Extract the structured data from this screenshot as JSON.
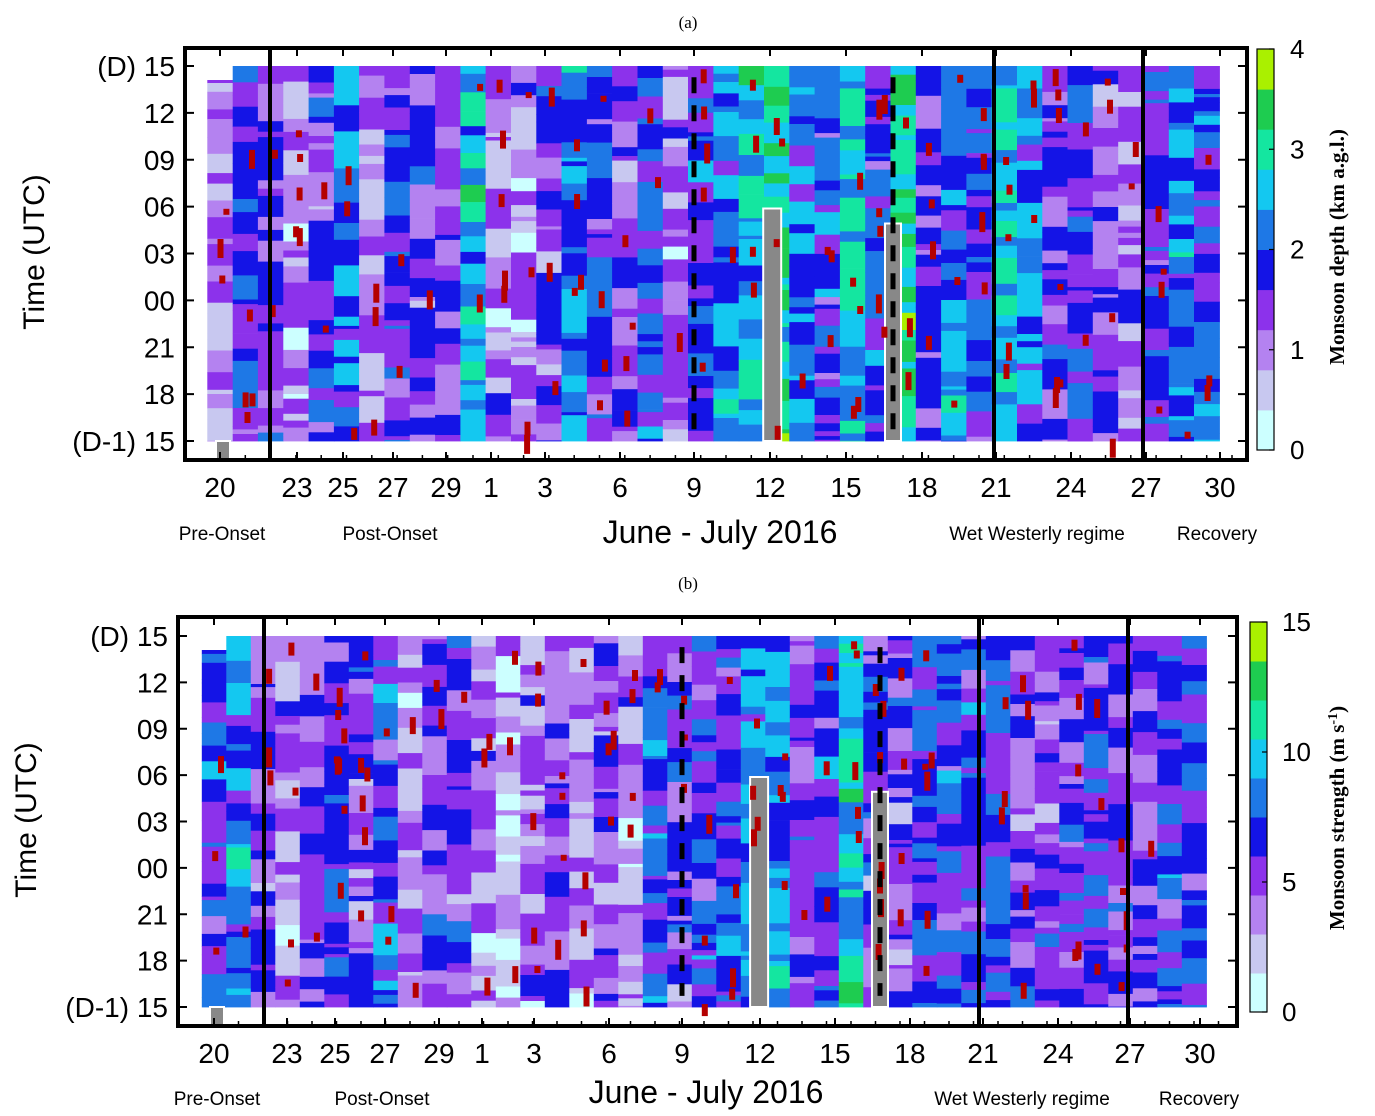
{
  "figure": {
    "date_range_label": "June - July 2016",
    "date_ticks": [
      "20",
      "23",
      "25",
      "27",
      "29",
      "1",
      "3",
      "6",
      "9",
      "12",
      "15",
      "18",
      "21",
      "24",
      "27",
      "30"
    ],
    "time_ticks": [
      "(D-1) 15",
      "18",
      "21",
      "00",
      "03",
      "06",
      "09",
      "12",
      "(D) 15"
    ],
    "ylabel": "Time (UTC)",
    "regimes": [
      "Pre-Onset",
      "Post-Onset",
      "Wet Westerly regime",
      "Recovery"
    ]
  },
  "chart_data": [
    {
      "type": "heatmap",
      "panel_label": "(a)",
      "title": "",
      "xlabel": "June - July 2016",
      "ylabel": "Time (UTC)",
      "colorbar": {
        "label": "Monsoon depth (km a.g.l.)",
        "ticks": [
          "0",
          "1",
          "2",
          "3",
          "4"
        ],
        "min": 0,
        "max": 4,
        "colors": [
          "#ccffff",
          "#c8c8f0",
          "#b482f0",
          "#8c32eb",
          "#1414e6",
          "#1e78e6",
          "#14c8f0",
          "#14e6a0",
          "#1ecc50",
          "#aaf000"
        ]
      },
      "x": "daily columns, 20 June to 30 July 2016",
      "y": "3-hourly time of day, 15 UTC (D-1) to 15 UTC (D)",
      "regime_boundaries": [
        "22 June",
        "21 July",
        "27 July"
      ],
      "dashed_markers": [
        "9 July",
        "17 July"
      ]
    },
    {
      "type": "heatmap",
      "panel_label": "(b)",
      "title": "",
      "xlabel": "June - July 2016",
      "ylabel": "Time (UTC)",
      "colorbar": {
        "label": "Monsoon strength (m s-1)",
        "label_main": "Monsoon strength (m s",
        "label_sup": "-1",
        "label_end": ")",
        "ticks": [
          "0",
          "5",
          "10",
          "15"
        ],
        "min": 0,
        "max": 15,
        "colors": [
          "#ccffff",
          "#c8c8f0",
          "#b482f0",
          "#8c32eb",
          "#1414e6",
          "#1e78e6",
          "#14c8f0",
          "#14e6a0",
          "#1ecc50",
          "#aaf000"
        ]
      },
      "x": "daily columns, 20 June to 30 July 2016",
      "y": "3-hourly time of day, 15 UTC (D-1) to 15 UTC (D)",
      "regime_boundaries": [
        "22 June",
        "21 July",
        "27 July"
      ],
      "dashed_markers": [
        "9 July",
        "17 July"
      ]
    }
  ]
}
